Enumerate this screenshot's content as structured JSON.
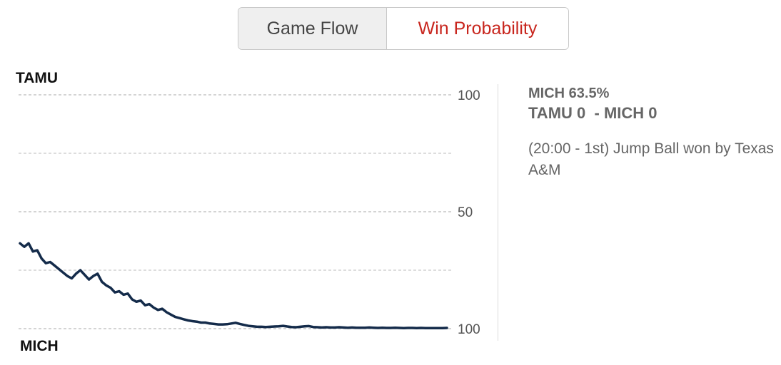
{
  "tabs": [
    {
      "label": "Game Flow",
      "active": false
    },
    {
      "label": "Win Probability",
      "active": true
    }
  ],
  "colors": {
    "active_tab_text": "#c8261e",
    "line": "#142b4a",
    "grid": "#bbbbbb"
  },
  "info": {
    "probability": "MICH 63.5%",
    "score_away": "TAMU 0",
    "score_separator": "-",
    "score_home": "MICH 0",
    "play": "(20:00 - 1st) Jump Ball won by Texas A&M"
  },
  "chart_data": {
    "type": "line",
    "top_team": "TAMU",
    "bottom_team": "MICH",
    "yticks": [
      {
        "value": 100,
        "label": "100"
      },
      {
        "value": 50,
        "label": "50"
      },
      {
        "value": 0,
        "label": "100"
      }
    ],
    "ylim": [
      0,
      100
    ],
    "grid": true,
    "series": [
      {
        "team": "TAMU",
        "values": [
          36.5,
          35.0,
          36.5,
          33.0,
          33.5,
          30.0,
          28.0,
          28.5,
          27.0,
          25.5,
          24.0,
          22.5,
          21.5,
          23.5,
          25.0,
          23.0,
          21.0,
          22.5,
          23.5,
          20.0,
          18.5,
          17.5,
          15.5,
          16.0,
          14.5,
          15.0,
          12.5,
          11.5,
          12.0,
          10.0,
          10.5,
          9.0,
          8.0,
          8.5,
          7.0,
          6.0,
          5.0,
          4.5,
          4.0,
          3.5,
          3.2,
          3.0,
          2.6,
          2.6,
          2.2,
          2.0,
          1.8,
          1.8,
          1.9,
          2.2,
          2.5,
          2.0,
          1.6,
          1.2,
          1.0,
          0.8,
          0.8,
          0.7,
          0.8,
          0.9,
          1.0,
          1.2,
          0.9,
          0.7,
          0.6,
          0.8,
          1.0,
          1.1,
          0.7,
          0.6,
          0.5,
          0.6,
          0.5,
          0.5,
          0.6,
          0.5,
          0.4,
          0.5,
          0.4,
          0.4,
          0.4,
          0.5,
          0.4,
          0.3,
          0.4,
          0.3,
          0.3,
          0.4,
          0.3,
          0.2,
          0.3,
          0.3,
          0.2,
          0.3,
          0.2,
          0.2,
          0.2,
          0.2,
          0.2,
          0.3
        ]
      }
    ]
  }
}
